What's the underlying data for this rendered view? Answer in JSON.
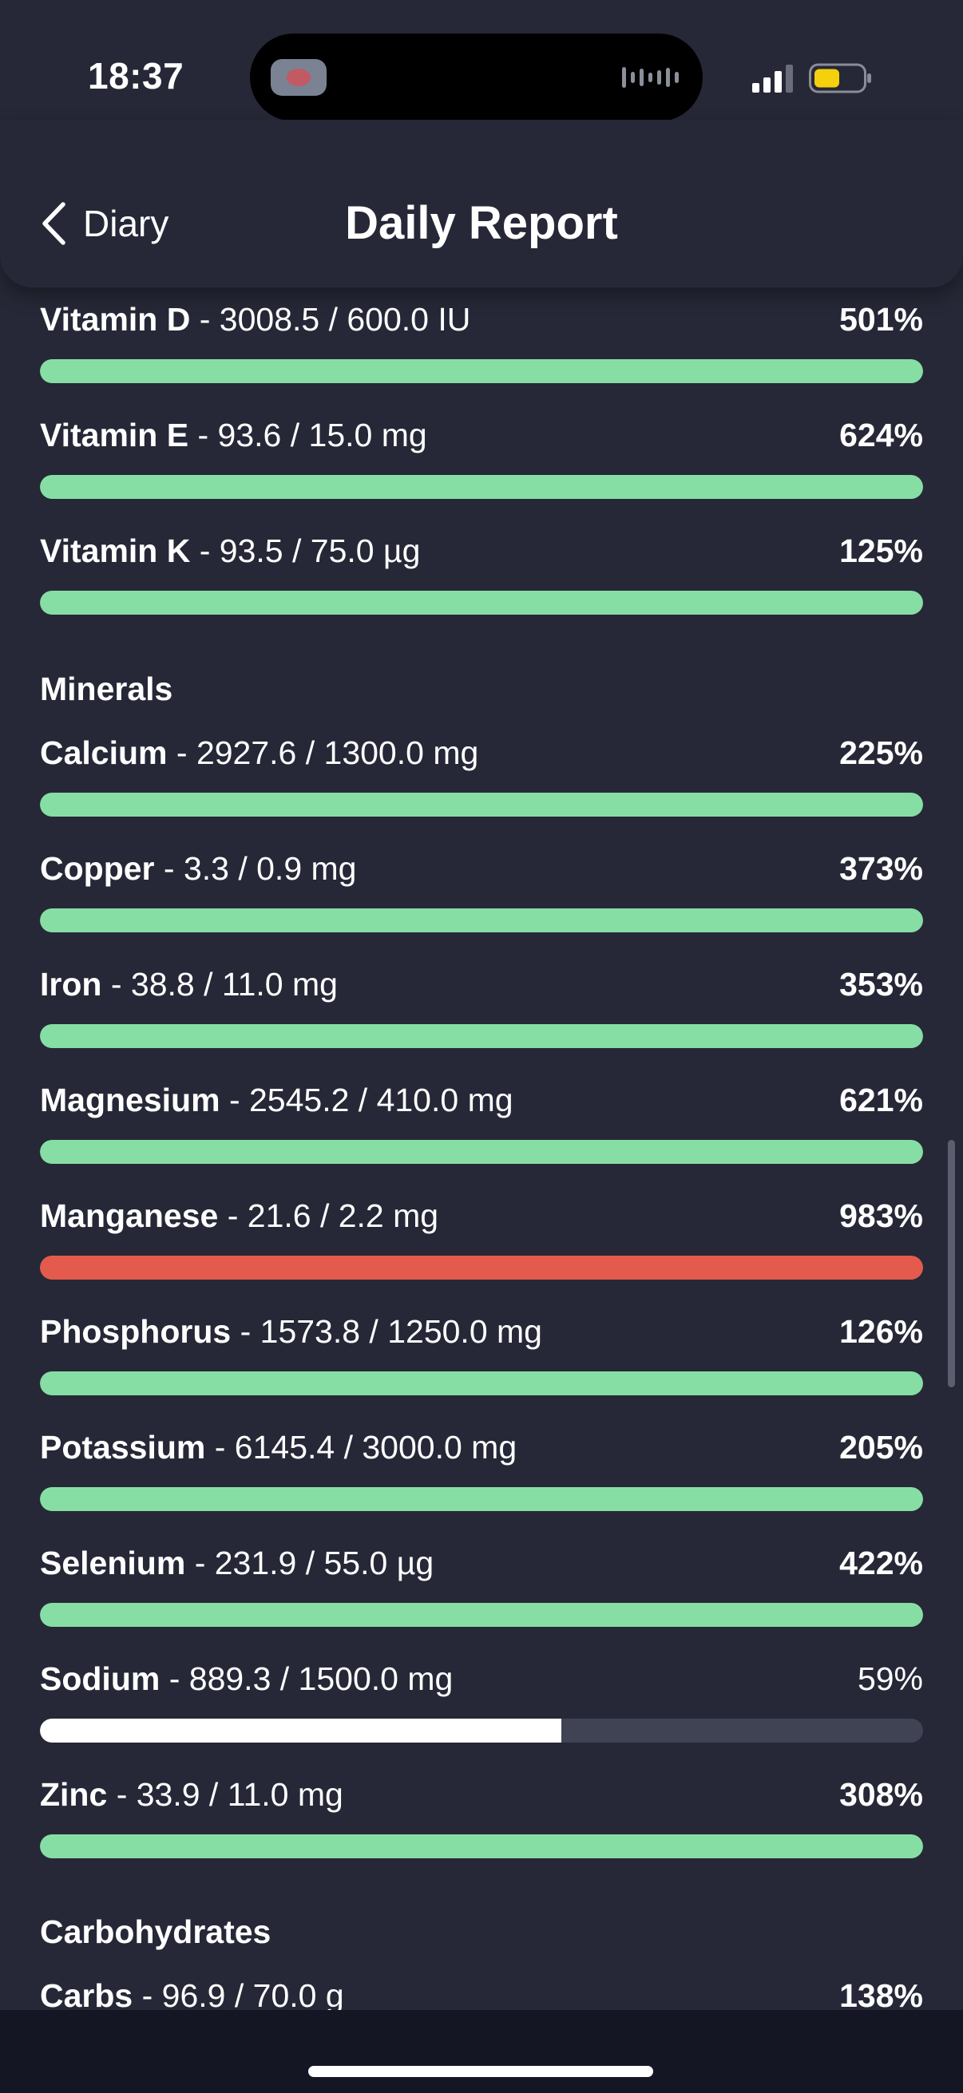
{
  "status_bar": {
    "time": "18:37"
  },
  "header": {
    "back_label": "Diary",
    "title": "Daily Report"
  },
  "colors": {
    "ok": "#86dea5",
    "over": "#e45b4e",
    "under": "#ffffff",
    "track": "#404354",
    "background": "#262837"
  },
  "rows": [
    {
      "name": "Vitamin D",
      "detail": "- 3008.5 / 600.0 IU",
      "percent": "501%",
      "fill": 1.0,
      "status": "ok"
    },
    {
      "name": "Vitamin E",
      "detail": "- 93.6 / 15.0 mg",
      "percent": "624%",
      "fill": 1.0,
      "status": "ok"
    },
    {
      "name": "Vitamin K",
      "detail": "- 93.5 / 75.0 µg",
      "percent": "125%",
      "fill": 1.0,
      "status": "ok"
    },
    {
      "section": "Minerals"
    },
    {
      "name": "Calcium",
      "detail": "- 2927.6 / 1300.0 mg",
      "percent": "225%",
      "fill": 1.0,
      "status": "ok"
    },
    {
      "name": "Copper",
      "detail": "- 3.3 / 0.9 mg",
      "percent": "373%",
      "fill": 1.0,
      "status": "ok"
    },
    {
      "name": "Iron",
      "detail": "- 38.8 / 11.0 mg",
      "percent": "353%",
      "fill": 1.0,
      "status": "ok"
    },
    {
      "name": "Magnesium",
      "detail": "- 2545.2 / 410.0 mg",
      "percent": "621%",
      "fill": 1.0,
      "status": "ok"
    },
    {
      "name": "Manganese",
      "detail": "- 21.6 / 2.2 mg",
      "percent": "983%",
      "fill": 1.0,
      "status": "over"
    },
    {
      "name": "Phosphorus",
      "detail": "- 1573.8 / 1250.0 mg",
      "percent": "126%",
      "fill": 1.0,
      "status": "ok"
    },
    {
      "name": "Potassium",
      "detail": "- 6145.4 / 3000.0 mg",
      "percent": "205%",
      "fill": 1.0,
      "status": "ok"
    },
    {
      "name": "Selenium",
      "detail": "- 231.9 / 55.0 µg",
      "percent": "422%",
      "fill": 1.0,
      "status": "ok"
    },
    {
      "name": "Sodium",
      "detail": "- 889.3 / 1500.0 mg",
      "percent": "59%",
      "fill": 0.59,
      "status": "under"
    },
    {
      "name": "Zinc",
      "detail": "- 33.9 / 11.0 mg",
      "percent": "308%",
      "fill": 1.0,
      "status": "ok"
    },
    {
      "section": "Carbohydrates"
    },
    {
      "name": "Carbs",
      "detail": "- 96.9 / 70.0 g",
      "percent": "138%",
      "fill": 1.0,
      "status": "ok"
    }
  ]
}
